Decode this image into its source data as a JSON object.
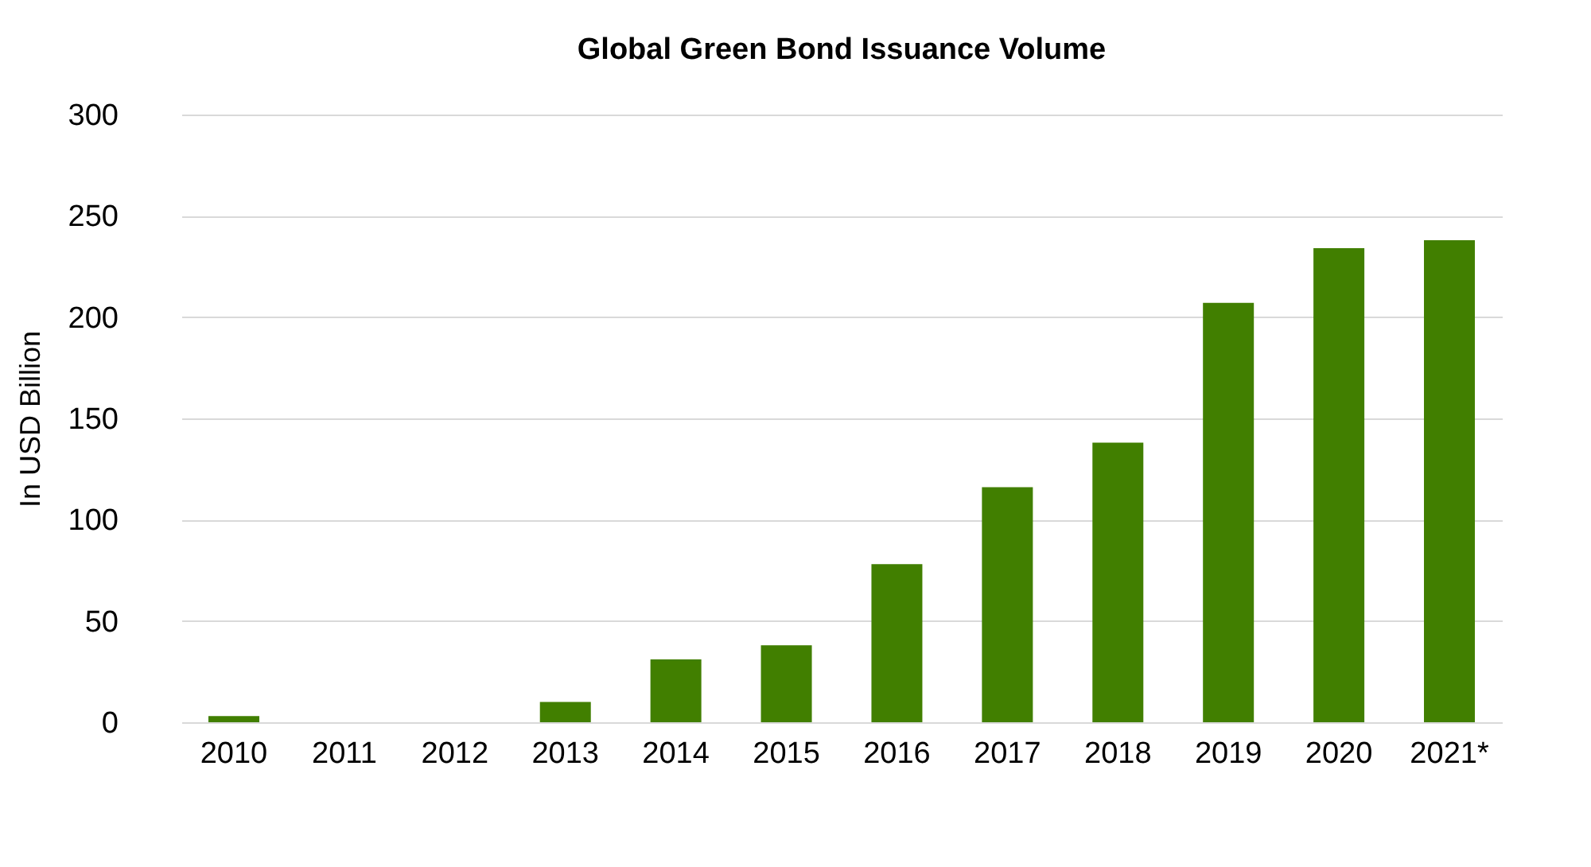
{
  "chart_data": {
    "type": "bar",
    "title": "Global Green Bond Issuance Volume",
    "ylabel": "In USD Billion",
    "categories": [
      "2010",
      "2011",
      "2012",
      "2013",
      "2014",
      "2015",
      "2016",
      "2017",
      "2018",
      "2019",
      "2020",
      "2021*"
    ],
    "values": [
      3,
      null,
      null,
      10,
      31,
      38,
      78,
      116,
      138,
      207,
      234,
      238
    ],
    "color": "#417f00",
    "ylim": [
      0,
      300
    ],
    "yticks": [
      0,
      50,
      100,
      150,
      200,
      250,
      300
    ],
    "grid": "y"
  }
}
